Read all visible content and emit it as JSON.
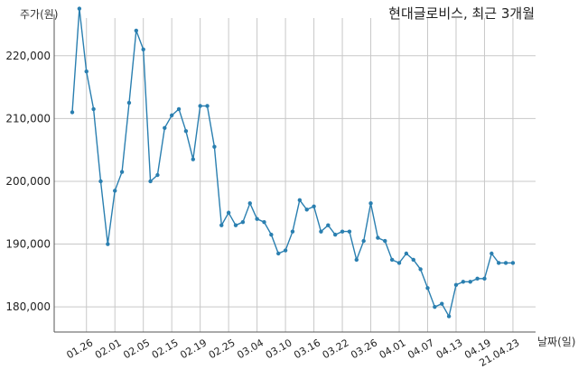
{
  "chart_data": {
    "type": "line",
    "title": "현대글로비스, 최근 3개월",
    "ylabel": "주가(원)",
    "xlabel": "날짜(일)",
    "ylim": [
      176000,
      226000
    ],
    "yticks": [
      180000,
      190000,
      200000,
      210000,
      220000
    ],
    "ytick_labels": [
      "180,000",
      "190,000",
      "200,000",
      "210,000",
      "220,000"
    ],
    "xtick_labels": [
      "01.26",
      "02.01",
      "02.05",
      "02.15",
      "02.19",
      "02.25",
      "03.04",
      "03.10",
      "03.16",
      "03.22",
      "03.26",
      "04.01",
      "04.07",
      "04.13",
      "04.19",
      "21.04.23"
    ],
    "xtick_index": [
      2,
      6,
      10,
      14,
      18,
      22,
      26,
      30,
      34,
      38,
      42,
      46,
      50,
      54,
      58,
      62
    ],
    "grid": true,
    "color": "#2a7fb0",
    "values": [
      211000,
      227500,
      217500,
      211500,
      200000,
      190000,
      198500,
      201500,
      212500,
      224000,
      221000,
      200000,
      201000,
      208500,
      210500,
      211500,
      208000,
      203500,
      212000,
      212000,
      205500,
      193000,
      195000,
      193000,
      193500,
      196500,
      194000,
      193500,
      191500,
      188500,
      189000,
      192000,
      197000,
      195500,
      196000,
      192000,
      193000,
      191500,
      192000,
      192000,
      187500,
      190500,
      196500,
      191000,
      190500,
      187500,
      187000,
      188500,
      187500,
      186000,
      183000,
      180000,
      180500,
      178500,
      183500,
      184000,
      184000,
      184500,
      184500,
      188500,
      187000,
      187000,
      187000
    ]
  }
}
